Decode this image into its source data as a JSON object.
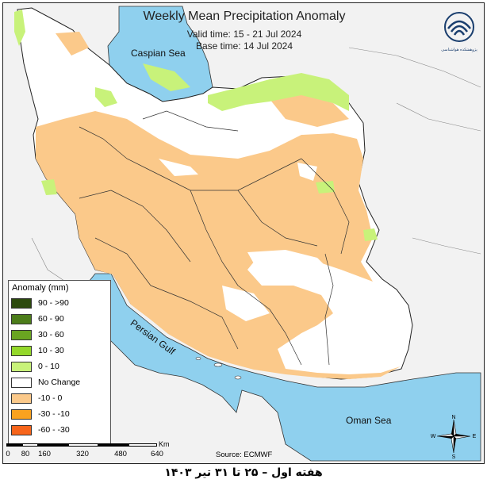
{
  "title": "Weekly Mean Precipitation Anomaly",
  "valid_time": "Valid time: 15 - 21 Jul 2024",
  "base_time": "Base time: 14 Jul 2024",
  "logo_text": "پژوهشکده هواشناسی",
  "seas": {
    "caspian": "Caspian Sea",
    "persian_gulf": "Persian Gulf",
    "oman": "Oman Sea"
  },
  "legend": {
    "title": "Anomaly (mm)",
    "items": [
      {
        "label": "90 - >90",
        "color": "#2d4a0e"
      },
      {
        "label": "60 - 90",
        "color": "#4c7d1a"
      },
      {
        "label": "30 - 60",
        "color": "#6aa521"
      },
      {
        "label": "10 - 30",
        "color": "#94d82a"
      },
      {
        "label": "0 - 10",
        "color": "#c8f27a"
      },
      {
        "label": "No Change",
        "color": "#ffffff"
      },
      {
        "label": "-10 - 0",
        "color": "#fbc98a"
      },
      {
        "label": "-30 - -10",
        "color": "#f9a21f"
      },
      {
        "label": "-60 - -30",
        "color": "#f7651b"
      }
    ]
  },
  "scale": {
    "unit": "Km",
    "ticks": [
      "0",
      "80",
      "160",
      "320",
      "480",
      "640"
    ]
  },
  "source": "Source: ECMWF",
  "compass": {
    "n": "N",
    "s": "S",
    "e": "E",
    "w": "W"
  },
  "footer": "هفته اول – ۲۵ تا ۳۱ تیر ۱۴۰۳",
  "colors": {
    "sea": "#8fd0ee",
    "land_outside": "#f2f2f2",
    "dry": "#fbc98a",
    "wet": "#c8f27a",
    "no_change": "#ffffff"
  }
}
